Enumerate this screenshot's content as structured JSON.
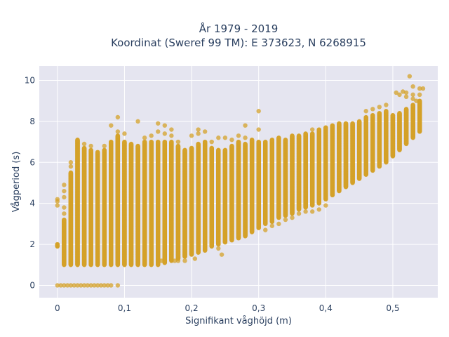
{
  "chart_data": {
    "type": "scatter",
    "title_lines": [
      "År 1979 - 2019",
      "Koordinat (Sweref 99 TM): E 373623, N 6268915"
    ],
    "xlabel": "Signifikant våghöjd (m)",
    "ylabel": "Vågperiod (s)",
    "xlim": [
      -0.027,
      0.567
    ],
    "ylim": [
      -0.6,
      10.7
    ],
    "x_ticks": [
      0,
      0.1,
      0.2,
      0.3,
      0.4,
      0.5
    ],
    "x_tick_labels": [
      "0",
      "0,1",
      "0,2",
      "0,3",
      "0,4",
      "0,5"
    ],
    "y_ticks": [
      0,
      2,
      4,
      6,
      8,
      10
    ],
    "y_tick_labels": [
      "0",
      "2",
      "4",
      "6",
      "8",
      "10"
    ],
    "grid": true,
    "marker_color": "#D4A12A",
    "plot_background": "#E5E5F0",
    "point_step": 0.01,
    "columns": [
      {
        "x": 0.0,
        "ymin": 1.9,
        "ymax": 2.0,
        "outliers": [
          0,
          2.0,
          3.9,
          4.1,
          4.2
        ]
      },
      {
        "x": 0.01,
        "ymin": 1.0,
        "ymax": 3.2,
        "outliers": [
          0,
          3.5,
          3.8,
          4.3,
          4.6,
          4.9
        ]
      },
      {
        "x": 0.02,
        "ymin": 1.0,
        "ymax": 5.5,
        "outliers": [
          0,
          5.8,
          6.0
        ]
      },
      {
        "x": 0.03,
        "ymin": 1.0,
        "ymax": 7.1,
        "outliers": [
          0
        ]
      },
      {
        "x": 0.04,
        "ymin": 1.0,
        "ymax": 6.7,
        "outliers": [
          0,
          6.9
        ]
      },
      {
        "x": 0.05,
        "ymin": 1.0,
        "ymax": 6.6,
        "outliers": [
          0,
          6.8
        ]
      },
      {
        "x": 0.06,
        "ymin": 1.0,
        "ymax": 6.5,
        "outliers": [
          0
        ]
      },
      {
        "x": 0.07,
        "ymin": 1.0,
        "ymax": 6.6,
        "outliers": [
          0,
          6.8
        ]
      },
      {
        "x": 0.08,
        "ymin": 1.0,
        "ymax": 7.0,
        "outliers": [
          0,
          7.8
        ]
      },
      {
        "x": 0.09,
        "ymin": 1.0,
        "ymax": 7.3,
        "outliers": [
          0,
          7.5,
          8.2
        ]
      },
      {
        "x": 0.1,
        "ymin": 1.0,
        "ymax": 7.0,
        "outliers": [
          7.4
        ]
      },
      {
        "x": 0.11,
        "ymin": 1.0,
        "ymax": 6.9,
        "outliers": []
      },
      {
        "x": 0.12,
        "ymin": 1.0,
        "ymax": 6.8,
        "outliers": [
          8.0
        ]
      },
      {
        "x": 0.13,
        "ymin": 1.0,
        "ymax": 7.0,
        "outliers": [
          7.2
        ]
      },
      {
        "x": 0.14,
        "ymin": 1.0,
        "ymax": 7.0,
        "outliers": [
          7.3
        ]
      },
      {
        "x": 0.15,
        "ymin": 1.0,
        "ymax": 7.0,
        "outliers": [
          7.5,
          7.9
        ]
      },
      {
        "x": 0.16,
        "ymin": 1.1,
        "ymax": 7.0,
        "outliers": [
          7.4,
          7.8
        ]
      },
      {
        "x": 0.17,
        "ymin": 1.2,
        "ymax": 7.0,
        "outliers": [
          7.3,
          7.6
        ]
      },
      {
        "x": 0.18,
        "ymin": 1.3,
        "ymax": 6.8,
        "outliers": [
          1.2,
          7.0
        ]
      },
      {
        "x": 0.19,
        "ymin": 1.4,
        "ymax": 6.6,
        "outliers": [
          1.2
        ]
      },
      {
        "x": 0.2,
        "ymin": 1.5,
        "ymax": 6.7,
        "outliers": [
          7.3
        ]
      },
      {
        "x": 0.21,
        "ymin": 1.6,
        "ymax": 6.9,
        "outliers": [
          7.4,
          7.6
        ]
      },
      {
        "x": 0.22,
        "ymin": 1.7,
        "ymax": 7.0,
        "outliers": [
          7.5
        ]
      },
      {
        "x": 0.23,
        "ymin": 1.9,
        "ymax": 6.7,
        "outliers": [
          7.0
        ]
      },
      {
        "x": 0.24,
        "ymin": 2.0,
        "ymax": 6.6,
        "outliers": [
          1.8,
          7.2
        ]
      },
      {
        "x": 0.25,
        "ymin": 2.1,
        "ymax": 6.6,
        "outliers": [
          7.2
        ]
      },
      {
        "x": 0.26,
        "ymin": 2.2,
        "ymax": 6.8,
        "outliers": [
          7.1
        ]
      },
      {
        "x": 0.27,
        "ymin": 2.3,
        "ymax": 7.0,
        "outliers": [
          7.3
        ]
      },
      {
        "x": 0.28,
        "ymin": 2.4,
        "ymax": 6.9,
        "outliers": [
          7.2,
          7.8
        ]
      },
      {
        "x": 0.29,
        "ymin": 2.6,
        "ymax": 7.1,
        "outliers": []
      },
      {
        "x": 0.3,
        "ymin": 2.8,
        "ymax": 7.0,
        "outliers": [
          7.6,
          8.5
        ]
      },
      {
        "x": 0.31,
        "ymin": 3.0,
        "ymax": 7.0,
        "outliers": [
          2.7
        ]
      },
      {
        "x": 0.32,
        "ymin": 3.1,
        "ymax": 7.1,
        "outliers": [
          2.9
        ]
      },
      {
        "x": 0.33,
        "ymin": 3.3,
        "ymax": 7.2,
        "outliers": [
          3.0
        ]
      },
      {
        "x": 0.34,
        "ymin": 3.4,
        "ymax": 7.1,
        "outliers": [
          3.2
        ]
      },
      {
        "x": 0.35,
        "ymin": 3.5,
        "ymax": 7.3,
        "outliers": [
          3.3
        ]
      },
      {
        "x": 0.36,
        "ymin": 3.7,
        "ymax": 7.3,
        "outliers": [
          3.5
        ]
      },
      {
        "x": 0.37,
        "ymin": 3.8,
        "ymax": 7.4,
        "outliers": [
          3.6
        ]
      },
      {
        "x": 0.38,
        "ymin": 3.9,
        "ymax": 7.4,
        "outliers": [
          3.6,
          7.6
        ]
      },
      {
        "x": 0.39,
        "ymin": 4.0,
        "ymax": 7.6,
        "outliers": [
          3.7
        ]
      },
      {
        "x": 0.4,
        "ymin": 4.2,
        "ymax": 7.7,
        "outliers": [
          3.9
        ]
      },
      {
        "x": 0.41,
        "ymin": 4.4,
        "ymax": 7.8,
        "outliers": []
      },
      {
        "x": 0.42,
        "ymin": 4.6,
        "ymax": 7.9,
        "outliers": []
      },
      {
        "x": 0.43,
        "ymin": 4.8,
        "ymax": 7.9,
        "outliers": []
      },
      {
        "x": 0.44,
        "ymin": 5.0,
        "ymax": 7.9,
        "outliers": []
      },
      {
        "x": 0.45,
        "ymin": 5.2,
        "ymax": 8.0,
        "outliers": []
      },
      {
        "x": 0.46,
        "ymin": 5.4,
        "ymax": 8.2,
        "outliers": [
          8.5
        ]
      },
      {
        "x": 0.47,
        "ymin": 5.6,
        "ymax": 8.3,
        "outliers": [
          8.6
        ]
      },
      {
        "x": 0.48,
        "ymin": 5.8,
        "ymax": 8.4,
        "outliers": [
          8.7
        ]
      },
      {
        "x": 0.49,
        "ymin": 6.0,
        "ymax": 8.5,
        "outliers": [
          8.8
        ]
      },
      {
        "x": 0.5,
        "ymin": 6.3,
        "ymax": 8.3,
        "outliers": []
      },
      {
        "x": 0.51,
        "ymin": 6.6,
        "ymax": 8.4,
        "outliers": [
          9.3
        ]
      },
      {
        "x": 0.52,
        "ymin": 6.9,
        "ymax": 8.6,
        "outliers": [
          9.2,
          9.4
        ]
      },
      {
        "x": 0.53,
        "ymin": 7.2,
        "ymax": 8.8,
        "outliers": [
          9.1,
          9.3,
          9.7
        ]
      },
      {
        "x": 0.54,
        "ymin": 7.5,
        "ymax": 9.0,
        "outliers": [
          9.3,
          9.6
        ]
      }
    ],
    "extra_points": [
      [
        0.525,
        10.2
      ],
      [
        0.545,
        9.6
      ],
      [
        0.505,
        9.4
      ],
      [
        0.515,
        9.45
      ],
      [
        0.535,
        9.0
      ],
      [
        0.005,
        0
      ],
      [
        0.015,
        0
      ],
      [
        0.025,
        0
      ],
      [
        0.035,
        0
      ],
      [
        0.045,
        0
      ],
      [
        0.055,
        0
      ],
      [
        0.065,
        0
      ],
      [
        0.075,
        0
      ],
      [
        0.155,
        1.2
      ],
      [
        0.175,
        1.2
      ],
      [
        0.245,
        1.5
      ],
      [
        0.205,
        1.3
      ]
    ]
  }
}
